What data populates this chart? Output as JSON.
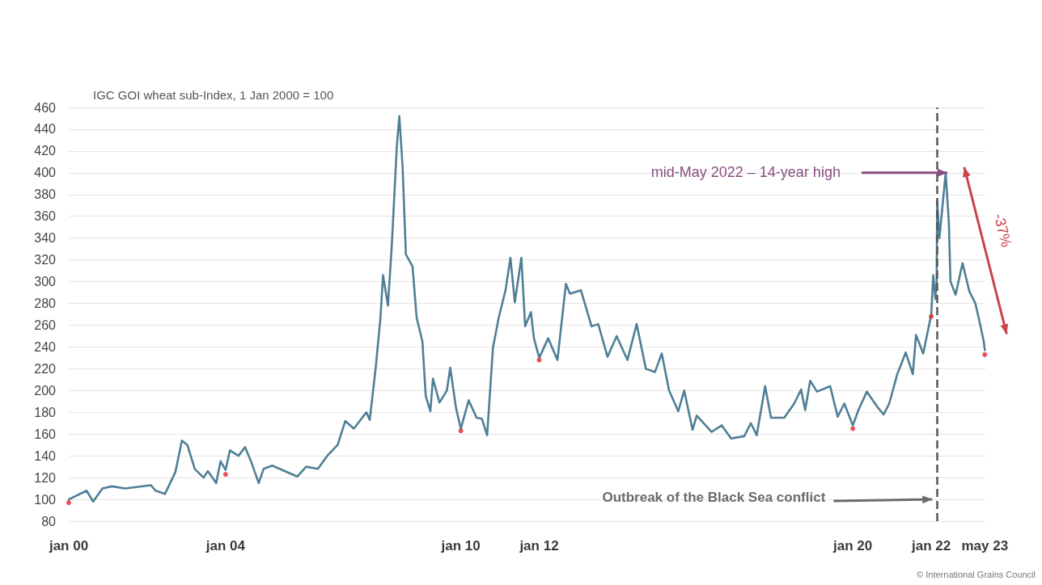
{
  "chart_data": {
    "type": "line",
    "ylabel": "IGC GOI wheat sub-Index, 1 Jan 2000 = 100",
    "xlim": [
      "2000-01-01",
      "2023-05-20"
    ],
    "xticks": [
      {
        "value": "2000-01-01",
        "label": "jan 00"
      },
      {
        "value": "2004-01-01",
        "label": "jan 04"
      },
      {
        "value": "2010-01-01",
        "label": "jan 10"
      },
      {
        "value": "2012-01-01",
        "label": "jan 12"
      },
      {
        "value": "2020-01-01",
        "label": "jan 20"
      },
      {
        "value": "2022-01-01",
        "label": "jan 22"
      },
      {
        "value": "2023-05-15",
        "label": "may 23"
      }
    ],
    "ylim": [
      80,
      460
    ],
    "yticks": [
      80,
      100,
      120,
      140,
      160,
      180,
      200,
      220,
      240,
      260,
      280,
      300,
      320,
      340,
      360,
      380,
      400,
      420,
      440,
      460
    ],
    "grid": "y",
    "series": [
      {
        "color": "#4f7f96",
        "marker": "none",
        "line_style": "solid",
        "x": [
          "2000-01-01",
          "2000-06-15",
          "2000-08-15",
          "2000-11-10",
          "2001-02-05",
          "2001-06-10",
          "2002-02-05",
          "2002-03-20",
          "2002-06-15",
          "2002-09-20",
          "2002-11-20",
          "2003-01-10",
          "2003-03-20",
          "2003-06-10",
          "2003-07-20",
          "2003-10-05",
          "2003-11-15",
          "2004-01-01",
          "2004-02-10",
          "2004-04-30",
          "2004-07-01",
          "2004-08-25",
          "2004-11-05",
          "2004-12-20",
          "2005-03-10",
          "2005-07-05",
          "2005-10-30",
          "2006-01-20",
          "2006-05-10",
          "2006-08-05",
          "2006-11-10",
          "2007-01-20",
          "2007-04-10",
          "2007-08-05",
          "2007-09-05",
          "2007-10-30",
          "2007-12-14",
          "2008-01-07",
          "2008-02-22",
          "2008-03-29",
          "2008-05-15",
          "2008-06-07",
          "2008-07-07",
          "2008-08-07",
          "2008-10-08",
          "2008-11-15",
          "2009-01-08",
          "2009-02-08",
          "2009-03-23",
          "2009-04-16",
          "2009-06-16",
          "2009-08-24",
          "2009-09-24",
          "2009-11-17",
          "2010-01-01",
          "2010-03-15",
          "2010-05-28",
          "2010-07-16",
          "2010-09-03",
          "2010-10-27",
          "2010-12-20",
          "2011-02-21",
          "2011-04-08",
          "2011-05-19",
          "2011-07-19",
          "2011-08-23",
          "2011-10-16",
          "2011-11-13",
          "2012-01-01",
          "2012-03-25",
          "2012-06-19",
          "2012-09-06",
          "2012-10-14",
          "2013-01-24",
          "2013-05-03",
          "2013-07-04",
          "2013-09-29",
          "2013-12-23",
          "2014-04-02",
          "2014-06-27",
          "2014-09-21",
          "2014-12-15",
          "2015-02-16",
          "2015-04-25",
          "2015-07-20",
          "2015-09-13",
          "2015-11-30",
          "2016-01-08",
          "2016-05-26",
          "2016-08-28",
          "2016-11-22",
          "2017-03-25",
          "2017-05-26",
          "2017-07-20",
          "2017-10-06",
          "2017-11-30",
          "2018-04-02",
          "2018-07-04",
          "2018-09-06",
          "2018-10-14",
          "2018-11-30",
          "2019-02-01",
          "2019-06-04",
          "2019-08-13",
          "2019-10-14",
          "2020-01-01",
          "2020-02-22",
          "2020-05-11",
          "2020-08-16",
          "2020-10-14",
          "2020-12-05",
          "2021-02-18",
          "2021-05-08",
          "2021-07-13",
          "2021-08-12",
          "2021-10-18",
          "2022-01-01",
          "2022-01-19",
          "2022-02-09",
          "2022-02-20",
          "2022-02-25",
          "2022-03-18",
          "2022-05-15",
          "2022-06-14",
          "2022-06-29",
          "2022-08-16",
          "2022-10-19",
          "2022-12-22",
          "2023-02-16",
          "2023-04-03",
          "2023-05-05",
          "2023-05-15"
        ],
        "values": [
          100,
          108,
          98,
          110,
          112,
          110,
          113,
          108,
          105,
          125,
          154,
          150,
          128,
          120,
          126,
          115,
          135,
          127,
          145,
          140,
          148,
          135,
          115,
          128,
          131,
          126,
          121,
          130,
          128,
          140,
          150,
          172,
          165,
          180,
          173,
          220,
          267,
          306,
          278,
          334,
          425,
          452,
          406,
          325,
          314,
          267,
          245,
          195,
          181,
          211,
          189,
          200,
          221,
          184,
          165,
          191,
          175,
          174,
          159,
          239,
          267,
          292,
          322,
          281,
          322,
          259,
          272,
          248,
          230,
          248,
          228,
          298,
          289,
          292,
          259,
          261,
          231,
          250,
          228,
          261,
          220,
          217,
          234,
          200,
          181,
          200,
          164,
          177,
          162,
          168,
          156,
          158,
          170,
          159,
          204,
          175,
          175,
          188,
          201,
          182,
          209,
          199,
          204,
          176,
          188,
          168,
          182,
          199,
          185,
          178,
          188,
          215,
          235,
          215,
          251,
          234,
          270,
          306,
          284,
          300,
          374,
          340,
          400,
          354,
          300,
          288,
          317,
          291,
          280,
          260,
          245,
          237
        ]
      },
      {
        "type": "scatter",
        "color": "#e3262d",
        "marker": "circle",
        "x": [
          "2000-01-01",
          "2004-01-01",
          "2010-01-01",
          "2012-01-01",
          "2020-01-01",
          "2022-01-01",
          "2023-05-15"
        ],
        "values": [
          97,
          123,
          163,
          228,
          165,
          268,
          233
        ]
      }
    ],
    "ref_lines": [
      {
        "axis": "x",
        "value": "2022-02-24",
        "color": "#555555",
        "line_style": "dashed"
      }
    ],
    "annotations": [
      "mid-May 2022 – 14-year high",
      "Outbreak of the Black Sea conflict",
      "-37%",
      "© International Grains Council"
    ]
  }
}
